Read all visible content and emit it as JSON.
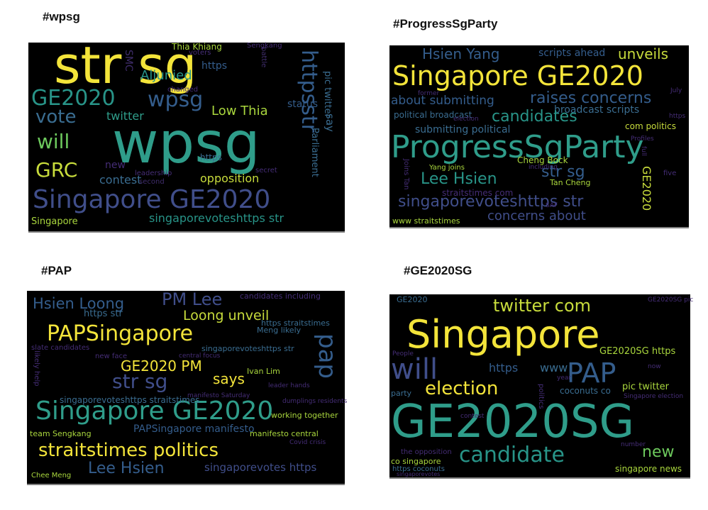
{
  "panels": [
    {
      "title": "#wpsg",
      "words": [
        "str sg",
        "wpsg",
        "GE2020",
        "wpsg",
        "vote",
        "will",
        "GRC",
        "Singapore GE2020",
        "singaporevoteshttps str",
        "Aljunied",
        "twitter",
        "Low Thia",
        "contest",
        "opposition",
        "https",
        "httpsstr",
        "status",
        "say",
        "Parliament",
        "pic twitter",
        "Thia Khiang",
        "new",
        "Singapore",
        "https",
        "SMC",
        "Sengkang",
        "leadership",
        "changed",
        "voters",
        "second",
        "battle",
        "secret"
      ]
    },
    {
      "title": "#ProgressSgParty",
      "words": [
        "Hsien Yang",
        "scripts ahead",
        "unveils",
        "Singapore GE2020",
        "about submitting",
        "raises concerns",
        "political broadcast",
        "broadcast scripts",
        "candidates",
        "com politics",
        "submitting political",
        "ProgressSgParty",
        "str sg",
        "Lee Hsien",
        "straitstimes com",
        "singaporevoteshttps str",
        "concerns about",
        "www straitstimes",
        "GE2020",
        "Cheng Bock",
        "Tan Cheng",
        "Yang joins",
        "including",
        "Joins Tan",
        "Profiles",
        "https",
        "election",
        "July",
        "full",
        "five",
        "former",
        "SAF"
      ]
    },
    {
      "title": "#PAP",
      "words": [
        "Hsien Loong",
        "PM Lee",
        "candidates including",
        "Loong unveil",
        "PAPSingapore",
        "https str",
        "https straitstimes",
        "singaporevoteshttps str",
        "GE2020 PM",
        "pap",
        "str sg",
        "says",
        "Ivan Lim",
        "Singapore GE2020",
        "singaporevoteshttps straitstimes",
        "PAPSingapore manifesto",
        "working together",
        "straitstimes politics",
        "Lee Hsien",
        "singaporevotes https",
        "Chee Meng",
        "team Sengkang",
        "manifesto central",
        "Meng likely",
        "likely help",
        "slate candidates",
        "new face",
        "central focus",
        "manifesto Saturday",
        "Covid crisis",
        "dumplings residents",
        "leader hands"
      ]
    },
    {
      "title": "#GE2020SG",
      "words": [
        "twitter com",
        "Singapore",
        "will",
        "PAP",
        "https",
        "www",
        "election",
        "GE2020SG https",
        "pic twitter",
        "GE2020SG",
        "candidate",
        "new",
        "singapore news",
        "co singapore",
        "coconuts co",
        "party",
        "politics",
        "GE2020",
        "GE2020SG pic",
        "https coconuts",
        "the opposition",
        "contest",
        "People",
        "year",
        "now",
        "number",
        "Singapore election",
        "singaporevotes"
      ]
    }
  ]
}
